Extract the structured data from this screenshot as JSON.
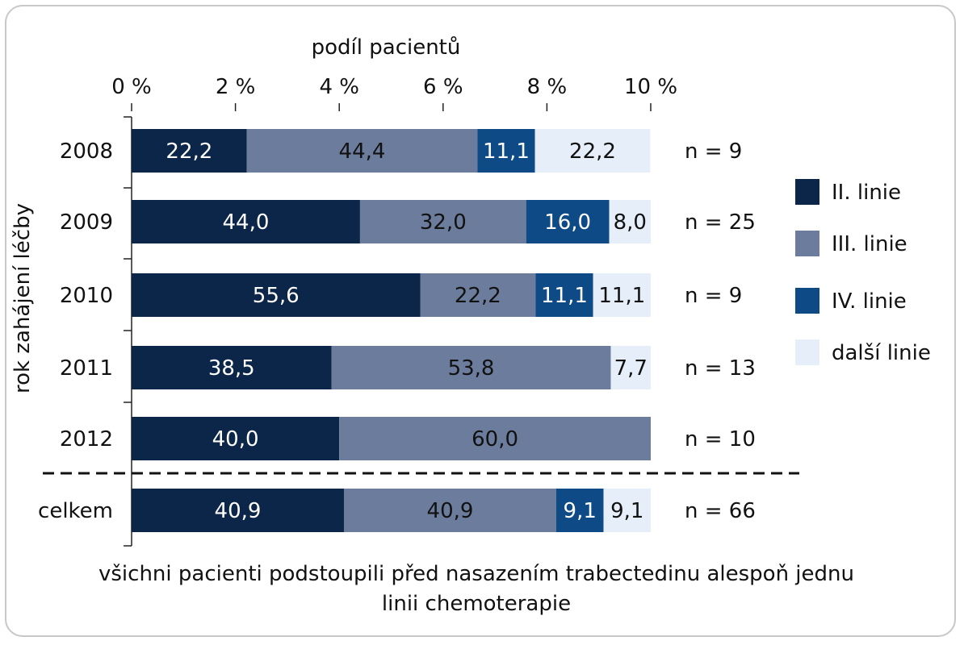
{
  "chart_data": {
    "type": "bar",
    "orientation": "horizontal",
    "stacked": true,
    "title": "podíl pacientů",
    "xlabel": "podíl pacientů",
    "ylabel": "rok zahájení léčby",
    "xticks": [
      "0 %",
      "2 %",
      "4 %",
      "6 %",
      "8 %",
      "10 %"
    ],
    "xlim": [
      0,
      100
    ],
    "legend_position": "right",
    "categories": [
      "2008",
      "2009",
      "2010",
      "2011",
      "2012",
      "celkem"
    ],
    "n_labels": [
      "n = 9",
      "n = 25",
      "n = 9",
      "n = 13",
      "n = 10",
      "n = 66"
    ],
    "series": [
      {
        "name": "II. linie",
        "color": "#0b2648",
        "label_color": "#ffffff",
        "values": [
          22.2,
          44.0,
          55.6,
          38.5,
          40.0,
          40.9
        ],
        "labels": [
          "22,2",
          "44,0",
          "55,6",
          "38,5",
          "40,0",
          "40,9"
        ]
      },
      {
        "name": "III. linie",
        "color": "#6c7c9c",
        "label_color": "#111111",
        "values": [
          44.4,
          32.0,
          22.2,
          53.8,
          60.0,
          40.9
        ],
        "labels": [
          "44,4",
          "32,0",
          "22,2",
          "53,8",
          "60,0",
          "40,9"
        ]
      },
      {
        "name": "IV. linie",
        "color": "#0e4a86",
        "label_color": "#ffffff",
        "values": [
          11.1,
          16.0,
          11.1,
          0,
          0,
          9.1
        ],
        "labels": [
          "11,1",
          "16,0",
          "11,1",
          "",
          "",
          "9,1"
        ]
      },
      {
        "name": "další linie",
        "color": "#e6eef9",
        "label_color": "#111111",
        "values": [
          22.2,
          8.0,
          11.1,
          7.7,
          0,
          9.1
        ],
        "labels": [
          "22,2",
          "8,0",
          "11,1",
          "7,7",
          "",
          "9,1"
        ]
      }
    ],
    "separator_before": "celkem",
    "footnote": "všichni pacienti podstoupili před nasazením trabectedinu alespoň jednu linii chemoterapie"
  }
}
